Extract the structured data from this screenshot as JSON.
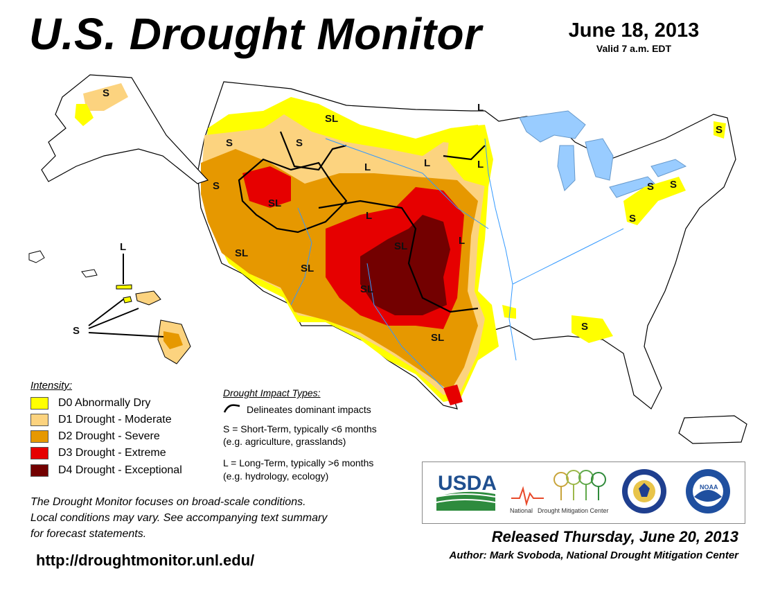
{
  "header": {
    "title": "U.S. Drought Monitor",
    "date": "June 18, 2013",
    "valid": "Valid 7 a.m. EDT"
  },
  "colors": {
    "d0": "#ffff00",
    "d1": "#fcd37f",
    "d2": "#e69800",
    "d3": "#e60000",
    "d4": "#730000",
    "water": "#99ccff",
    "land": "#ffffff"
  },
  "legend": {
    "title": "Intensity:",
    "items": [
      {
        "label": "D0 Abnormally Dry",
        "color": "#ffff00"
      },
      {
        "label": "D1 Drought - Moderate",
        "color": "#fcd37f"
      },
      {
        "label": "D2 Drought - Severe",
        "color": "#e69800"
      },
      {
        "label": "D3 Drought - Extreme",
        "color": "#e60000"
      },
      {
        "label": "D4 Drought - Exceptional",
        "color": "#730000"
      }
    ]
  },
  "impacts": {
    "title": "Drought Impact Types:",
    "line": "Delineates dominant impacts",
    "short_term": "S = Short-Term, typically <6 months",
    "short_term_eg": "(e.g. agriculture, grasslands)",
    "long_term": "L = Long-Term, typically >6 months",
    "long_term_eg": "(e.g. hydrology, ecology)"
  },
  "map_labels": {
    "s": "S",
    "l": "L",
    "sl": "SL"
  },
  "note": {
    "line1": "The Drought Monitor focuses on broad-scale conditions.",
    "line2": "Local conditions may vary. See accompanying text summary",
    "line3": "for forecast statements."
  },
  "logos": {
    "usda": "USDA",
    "ndmc_national": "National",
    "ndmc_rest": "Drought Mitigation Center",
    "noaa": "NOAA"
  },
  "footer": {
    "url": "http://droughtmonitor.unl.edu/",
    "released": "Released Thursday, June 20, 2013",
    "author": "Author: Mark Svoboda, National Drought Mitigation Center"
  }
}
